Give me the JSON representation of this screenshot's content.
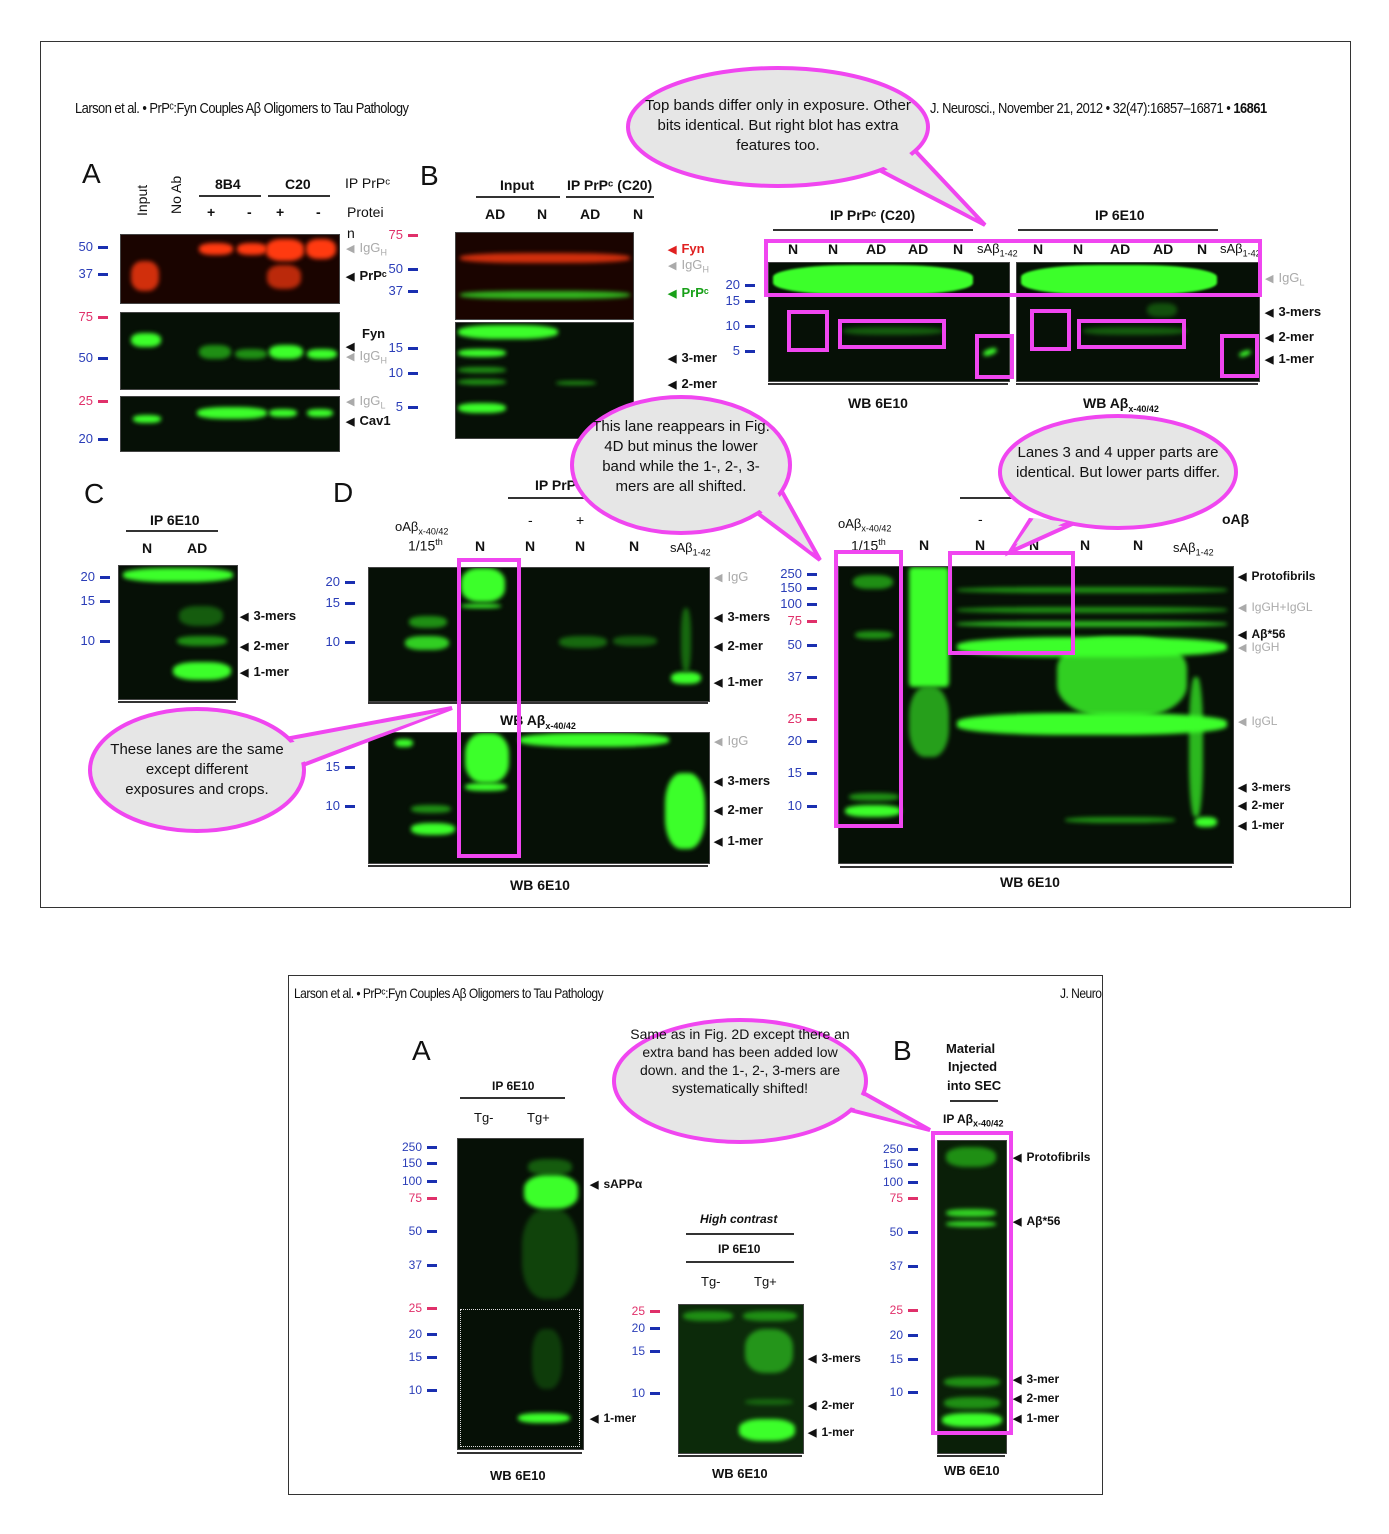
{
  "top_figure": {
    "header_left": "Larson et al. • PrPᶜ:Fyn Couples Aβ Oligomers to Tau Pathology",
    "header_right": "J. Neurosci., November 21, 2012 • 32(47):16857–16871 •",
    "page_number": "16861",
    "panel_a": {
      "letter": "A",
      "lanes_rotated": [
        "Input",
        "No Ab"
      ],
      "groups": [
        "8B4",
        "C20"
      ],
      "ip_label": "IP PrPᶜ",
      "protein_label_1": "Protei",
      "protein_label_2": "n",
      "signs": [
        "+",
        "-",
        "+",
        "-"
      ],
      "markers": [
        "50",
        "37",
        "75",
        "50",
        "25",
        "20"
      ],
      "bands": [
        {
          "main": "IgG",
          "sub": "H"
        },
        {
          "main": "PrPᶜ",
          "sub": ""
        },
        {
          "main": "Fyn",
          "sub": ""
        },
        {
          "main": "IgG",
          "sub": "H"
        },
        {
          "main": "IgG",
          "sub": "L"
        },
        {
          "main": "Cav1",
          "sub": ""
        }
      ]
    },
    "panel_b": {
      "letter": "B",
      "groups": [
        "Input",
        "IP PrPᶜ (C20)"
      ],
      "lanes": [
        "AD",
        "N",
        "AD",
        "N"
      ],
      "markers": [
        "75",
        "50",
        "37",
        "15",
        "10",
        "5"
      ],
      "bands": [
        "Fyn",
        "IgG",
        "PrPᶜ",
        "3-mer",
        "2-mer"
      ],
      "igg_sub": "H",
      "right": {
        "groups": [
          "IP PrPᶜ (C20)",
          "IP 6E10"
        ],
        "lanes": [
          "N",
          "N",
          "AD",
          "AD",
          "N",
          "sAβ",
          "N",
          "N",
          "AD",
          "AD",
          "N",
          "sAβ"
        ],
        "lane_sub": "1-42",
        "markers": [
          "20",
          "15",
          "10",
          "5"
        ],
        "bands": [
          "IgG",
          "3-mers",
          "2-mer",
          "1-mer"
        ],
        "igg_sub": "L",
        "wb_labels": [
          "WB 6E10",
          "WB Aβ"
        ],
        "wb_sub": "x-40/42"
      }
    },
    "panel_c": {
      "letter": "C",
      "group": "IP 6E10",
      "lanes": [
        "N",
        "AD"
      ],
      "markers": [
        "20",
        "15",
        "10"
      ],
      "bands": [
        "3-mers",
        "2-mer",
        "1-mer"
      ]
    },
    "panel_d": {
      "letter": "D",
      "group": "IP PrP",
      "signs": [
        "-",
        "+"
      ],
      "lane_first": "oAβ",
      "lane_first_sub": "x-40/42",
      "lane_first_2": "1/15",
      "lane_first_sup": "th",
      "lanes": [
        "N",
        "N",
        "N",
        "N"
      ],
      "lane_last": "sAβ",
      "lane_last_sub": "1-42",
      "markers_upper": [
        "20",
        "15",
        "10"
      ],
      "markers_lower": [
        "15",
        "10"
      ],
      "bands_upper": [
        "IgG",
        "3-mers",
        "2-mer",
        "1-mer"
      ],
      "bands_lower": [
        "IgG",
        "3-mers",
        "2-mer",
        "1-mer"
      ],
      "wb_upper": "WB Aβ",
      "wb_upper_sub": "x-40/42",
      "wb_lower": "WB 6E10"
    },
    "panel_d_right": {
      "sign": "-",
      "group_right": "oAβ",
      "lane_first": "oAβ",
      "lane_first_sub": "x-40/42",
      "lane_first_2": "1/15",
      "lane_first_sup": "th",
      "lanes": [
        "N",
        "N",
        "N",
        "N",
        "N"
      ],
      "lane_last": "sAβ",
      "lane_last_sub": "1-42",
      "markers": [
        "250",
        "150",
        "100",
        "75",
        "50",
        "37",
        "25",
        "20",
        "15",
        "10"
      ],
      "bands": [
        "Protofibrils",
        "IgGH+IgGL",
        "Aβ*56",
        "IgGH",
        "IgGL",
        "3-mers",
        "2-mer",
        "1-mer"
      ],
      "wb": "WB 6E10"
    },
    "callouts": [
      "Top bands differ only in exposure. Other bits identical. But right blot has extra features too.",
      "This lane reappears in Fig. 4D but minus the lower band while the 1-, 2-, 3-mers are all shifted.",
      "Lanes 3 and 4 upper parts are identical. But lower parts differ.",
      "These lanes are the same except different exposures and crops."
    ]
  },
  "bottom_figure": {
    "header_left": "Larson et al. • PrPᶜ:Fyn Couples Aβ Oligomers to Tau Pathology",
    "header_right": "J. Neuro",
    "panel_a": {
      "letter": "A",
      "group": "IP 6E10",
      "lanes": [
        "Tg-",
        "Tg+"
      ],
      "markers": [
        "250",
        "150",
        "100",
        "75",
        "50",
        "37",
        "25",
        "20",
        "15",
        "10"
      ],
      "bands": [
        "sAPPα",
        "1-mer"
      ],
      "wb": "WB 6E10"
    },
    "panel_hc": {
      "title": "High contrast",
      "group": "IP 6E10",
      "lanes": [
        "Tg-",
        "Tg+"
      ],
      "markers": [
        "25",
        "20",
        "15",
        "10"
      ],
      "bands": [
        "3-mers",
        "2-mer",
        "1-mer"
      ],
      "wb": "WB 6E10"
    },
    "panel_b": {
      "letter": "B",
      "title": [
        "Material",
        "Injected",
        "into SEC"
      ],
      "group": "IP Aβ",
      "group_sub": "x-40/42",
      "markers": [
        "250",
        "150",
        "100",
        "75",
        "50",
        "37",
        "25",
        "20",
        "15",
        "10"
      ],
      "bands": [
        "Protofibrils",
        "Aβ*56",
        "3-mer",
        "2-mer",
        "1-mer"
      ],
      "wb": "WB 6E10"
    },
    "callout": "Same as in Fig. 2D except there an extra band has been added low down. and the 1-, 2-, 3-mers are systematically shifted!"
  },
  "colors": {
    "callout_border": "#f046f0",
    "callout_fill": "#e6e6e6",
    "blot_green": "#3cff2a",
    "blot_red": "#ff3a10",
    "marker_blue": "#2b3eb8",
    "marker_red": "#e0306a"
  }
}
